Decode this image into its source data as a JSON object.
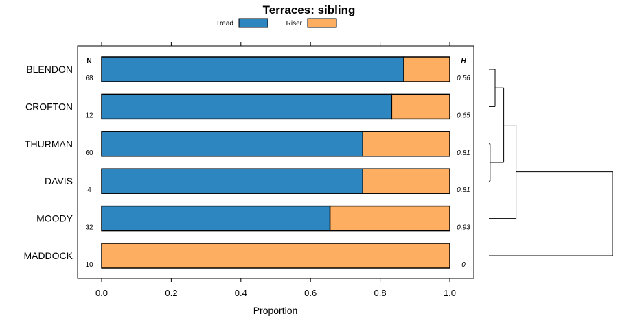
{
  "chart_data": {
    "type": "bar",
    "stacked": true,
    "orientation": "horizontal",
    "title": "Terraces: sibling",
    "xlabel": "Proportion",
    "ylabel": "",
    "xlim": [
      0,
      1
    ],
    "x_ticks": [
      "0.0",
      "0.2",
      "0.4",
      "0.6",
      "0.8",
      "1.0"
    ],
    "legend_position": "top",
    "categories": [
      "BLENDON",
      "CROFTON",
      "THURMAN",
      "DAVIS",
      "MOODY",
      "MADDOCK"
    ],
    "series": [
      {
        "name": "Tread",
        "color": "#2e86c1",
        "values": [
          0.868,
          0.833,
          0.75,
          0.75,
          0.656,
          0.0
        ]
      },
      {
        "name": "Riser",
        "color": "#fdae61",
        "values": [
          0.132,
          0.167,
          0.25,
          0.25,
          0.344,
          1.0
        ]
      }
    ],
    "n_header": "N",
    "n_values": [
      "68",
      "12",
      "60",
      "4",
      "32",
      "10"
    ],
    "h_header": "H",
    "h_values": [
      "0.56",
      "0.65",
      "0.81",
      "0.81",
      "0.93",
      "0"
    ],
    "dendrogram": {
      "merges": [
        {
          "a": 2,
          "b": 3,
          "height": 0.01
        },
        {
          "a": 0,
          "b": 1,
          "height": 0.05
        },
        {
          "a": 6,
          "b": 7,
          "height": 0.12
        },
        {
          "a": 8,
          "b": 4,
          "height": 0.22
        },
        {
          "a": 9,
          "b": 5,
          "height": 1.0
        }
      ]
    }
  }
}
